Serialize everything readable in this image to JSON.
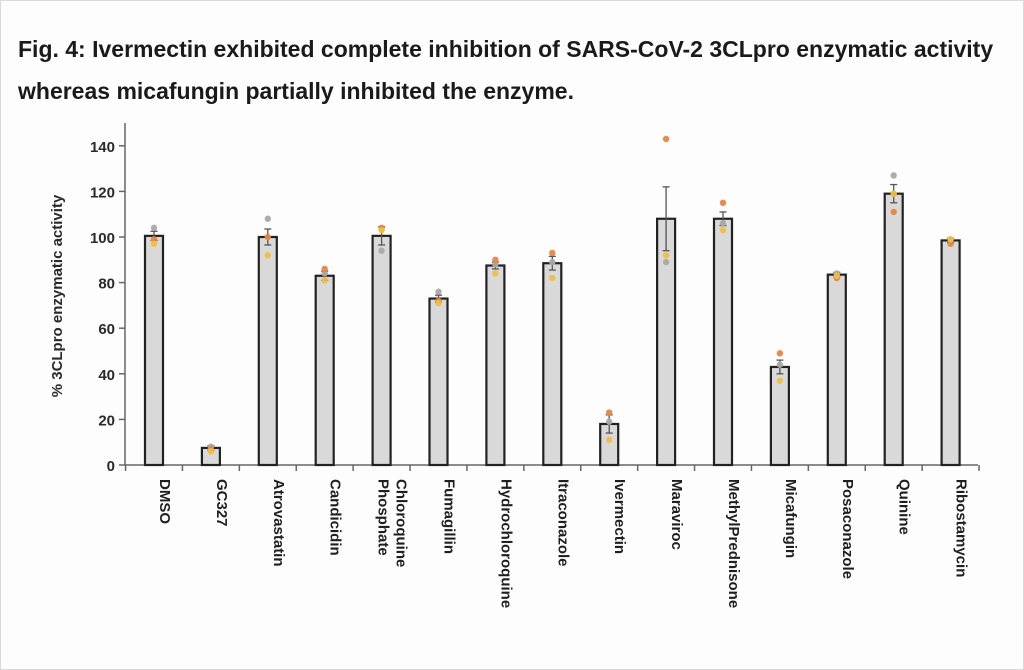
{
  "figure": {
    "title": "Fig. 4: Ivermectin exhibited complete inhibition of SARS-CoV-2 3CLpro enzymatic activity whereas micafungin partially inhibited the enzyme."
  },
  "chart_data": {
    "type": "bar",
    "ylabel": "% 3CLpro enzymatic activity",
    "xlabel": "",
    "ylim": [
      0,
      150
    ],
    "yticks": [
      0,
      20,
      40,
      60,
      80,
      100,
      120,
      140
    ],
    "categories": [
      "DMSO",
      "GC327",
      "Atrovastatin",
      "Candicidin",
      "Chloroquine Phosphate",
      "Fumagillin",
      "Hydrochloroquine",
      "Itraconazole",
      "Ivermectin",
      "Maraviroc",
      "MethylPrednisone",
      "Micafungin",
      "Posaconazole",
      "Quinine",
      "Ribostamycin"
    ],
    "values": [
      100.5,
      7.5,
      100,
      83,
      100.5,
      73,
      87.5,
      88.5,
      18,
      108,
      108,
      43,
      83.5,
      119,
      98.5
    ],
    "errors": [
      2,
      1,
      3.5,
      2,
      4,
      1.5,
      1.5,
      3,
      4,
      14,
      3,
      3,
      1,
      4,
      1
    ],
    "replicates": [
      [
        104,
        99,
        97
      ],
      [
        8,
        7,
        6
      ],
      [
        108,
        100,
        92
      ],
      [
        84,
        86,
        81
      ],
      [
        94,
        104,
        103
      ],
      [
        76,
        72,
        71
      ],
      [
        88,
        90,
        84
      ],
      [
        89,
        93,
        82
      ],
      [
        19,
        23,
        11
      ],
      [
        89,
        143,
        92
      ],
      [
        106,
        115,
        103
      ],
      [
        44,
        49,
        37
      ],
      [
        84,
        82,
        83
      ],
      [
        127,
        111,
        119
      ],
      [
        99,
        97,
        99
      ]
    ],
    "replicate_colors": [
      "#a9a9a9",
      "#e9853f",
      "#f2bf3a"
    ],
    "bar_color": "#d9d9d9",
    "bar_edge_color": "#222222",
    "error_color": "#555555"
  }
}
